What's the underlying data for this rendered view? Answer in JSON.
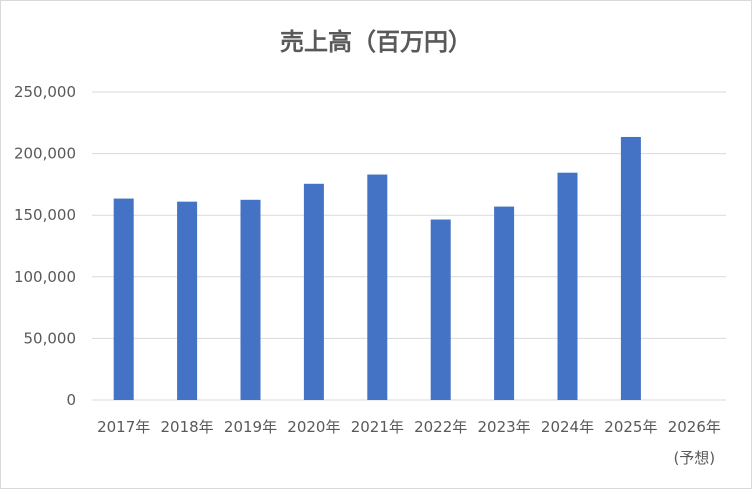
{
  "chart_data": {
    "type": "bar",
    "title": "売上高（百万円）",
    "xlabel": "",
    "ylabel": "",
    "categories": [
      "2017年",
      "2018年",
      "2019年",
      "2020年",
      "2021年",
      "2022年",
      "2023年",
      "2024年",
      "2025年",
      "2026年"
    ],
    "category_sublabels": [
      "",
      "",
      "",
      "",
      "",
      "",
      "",
      "",
      "",
      "(予想)"
    ],
    "values": [
      163500,
      161000,
      162500,
      175500,
      183000,
      146500,
      157000,
      184500,
      213500,
      null
    ],
    "ylim": [
      0,
      250000
    ],
    "yticks": [
      0,
      50000,
      100000,
      150000,
      200000,
      250000
    ],
    "ytick_labels": [
      "0",
      "50,000",
      "100,000",
      "150,000",
      "200,000",
      "250,000"
    ],
    "bar_color": "#4472C4",
    "grid": true,
    "legend": "none"
  }
}
